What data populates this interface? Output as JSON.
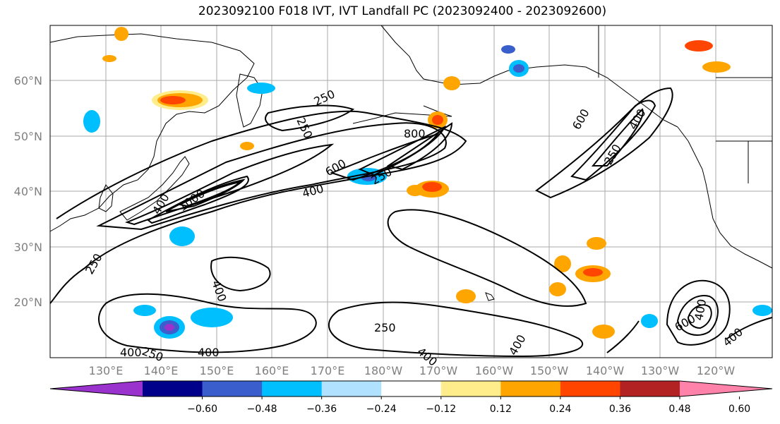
{
  "title": "2023092100 F018 IVT, IVT Landfall PC (2023092400 - 2023092600)",
  "lat_labels": [
    "60°N",
    "50°N",
    "40°N",
    "30°N",
    "20°N"
  ],
  "lon_labels": [
    "130°E",
    "140°E",
    "150°E",
    "160°E",
    "170°E",
    "180°W",
    "170°W",
    "160°W",
    "150°W",
    "140°W",
    "130°W",
    "120°W"
  ],
  "contour_labels": [
    "250",
    "250",
    "800",
    "600",
    "600",
    "400",
    "250",
    "400",
    "1000",
    "400",
    "250",
    "400",
    "250",
    "400",
    "400",
    "250",
    "400",
    "600",
    "400",
    "400",
    "250",
    "400"
  ],
  "colorbar": {
    "tick_labels": [
      "−0.60",
      "−0.48",
      "−0.36",
      "−0.24",
      "−0.12",
      "0.12",
      "0.24",
      "0.36",
      "0.48",
      "0.60"
    ],
    "colors": [
      "#9a32cd",
      "#00008b",
      "#3a5fcd",
      "#00bfff",
      "#b0e2ff",
      "#ffffff",
      "#ffec8b",
      "#ffa500",
      "#ff4500",
      "#b22222",
      "#ff82ab"
    ]
  }
}
